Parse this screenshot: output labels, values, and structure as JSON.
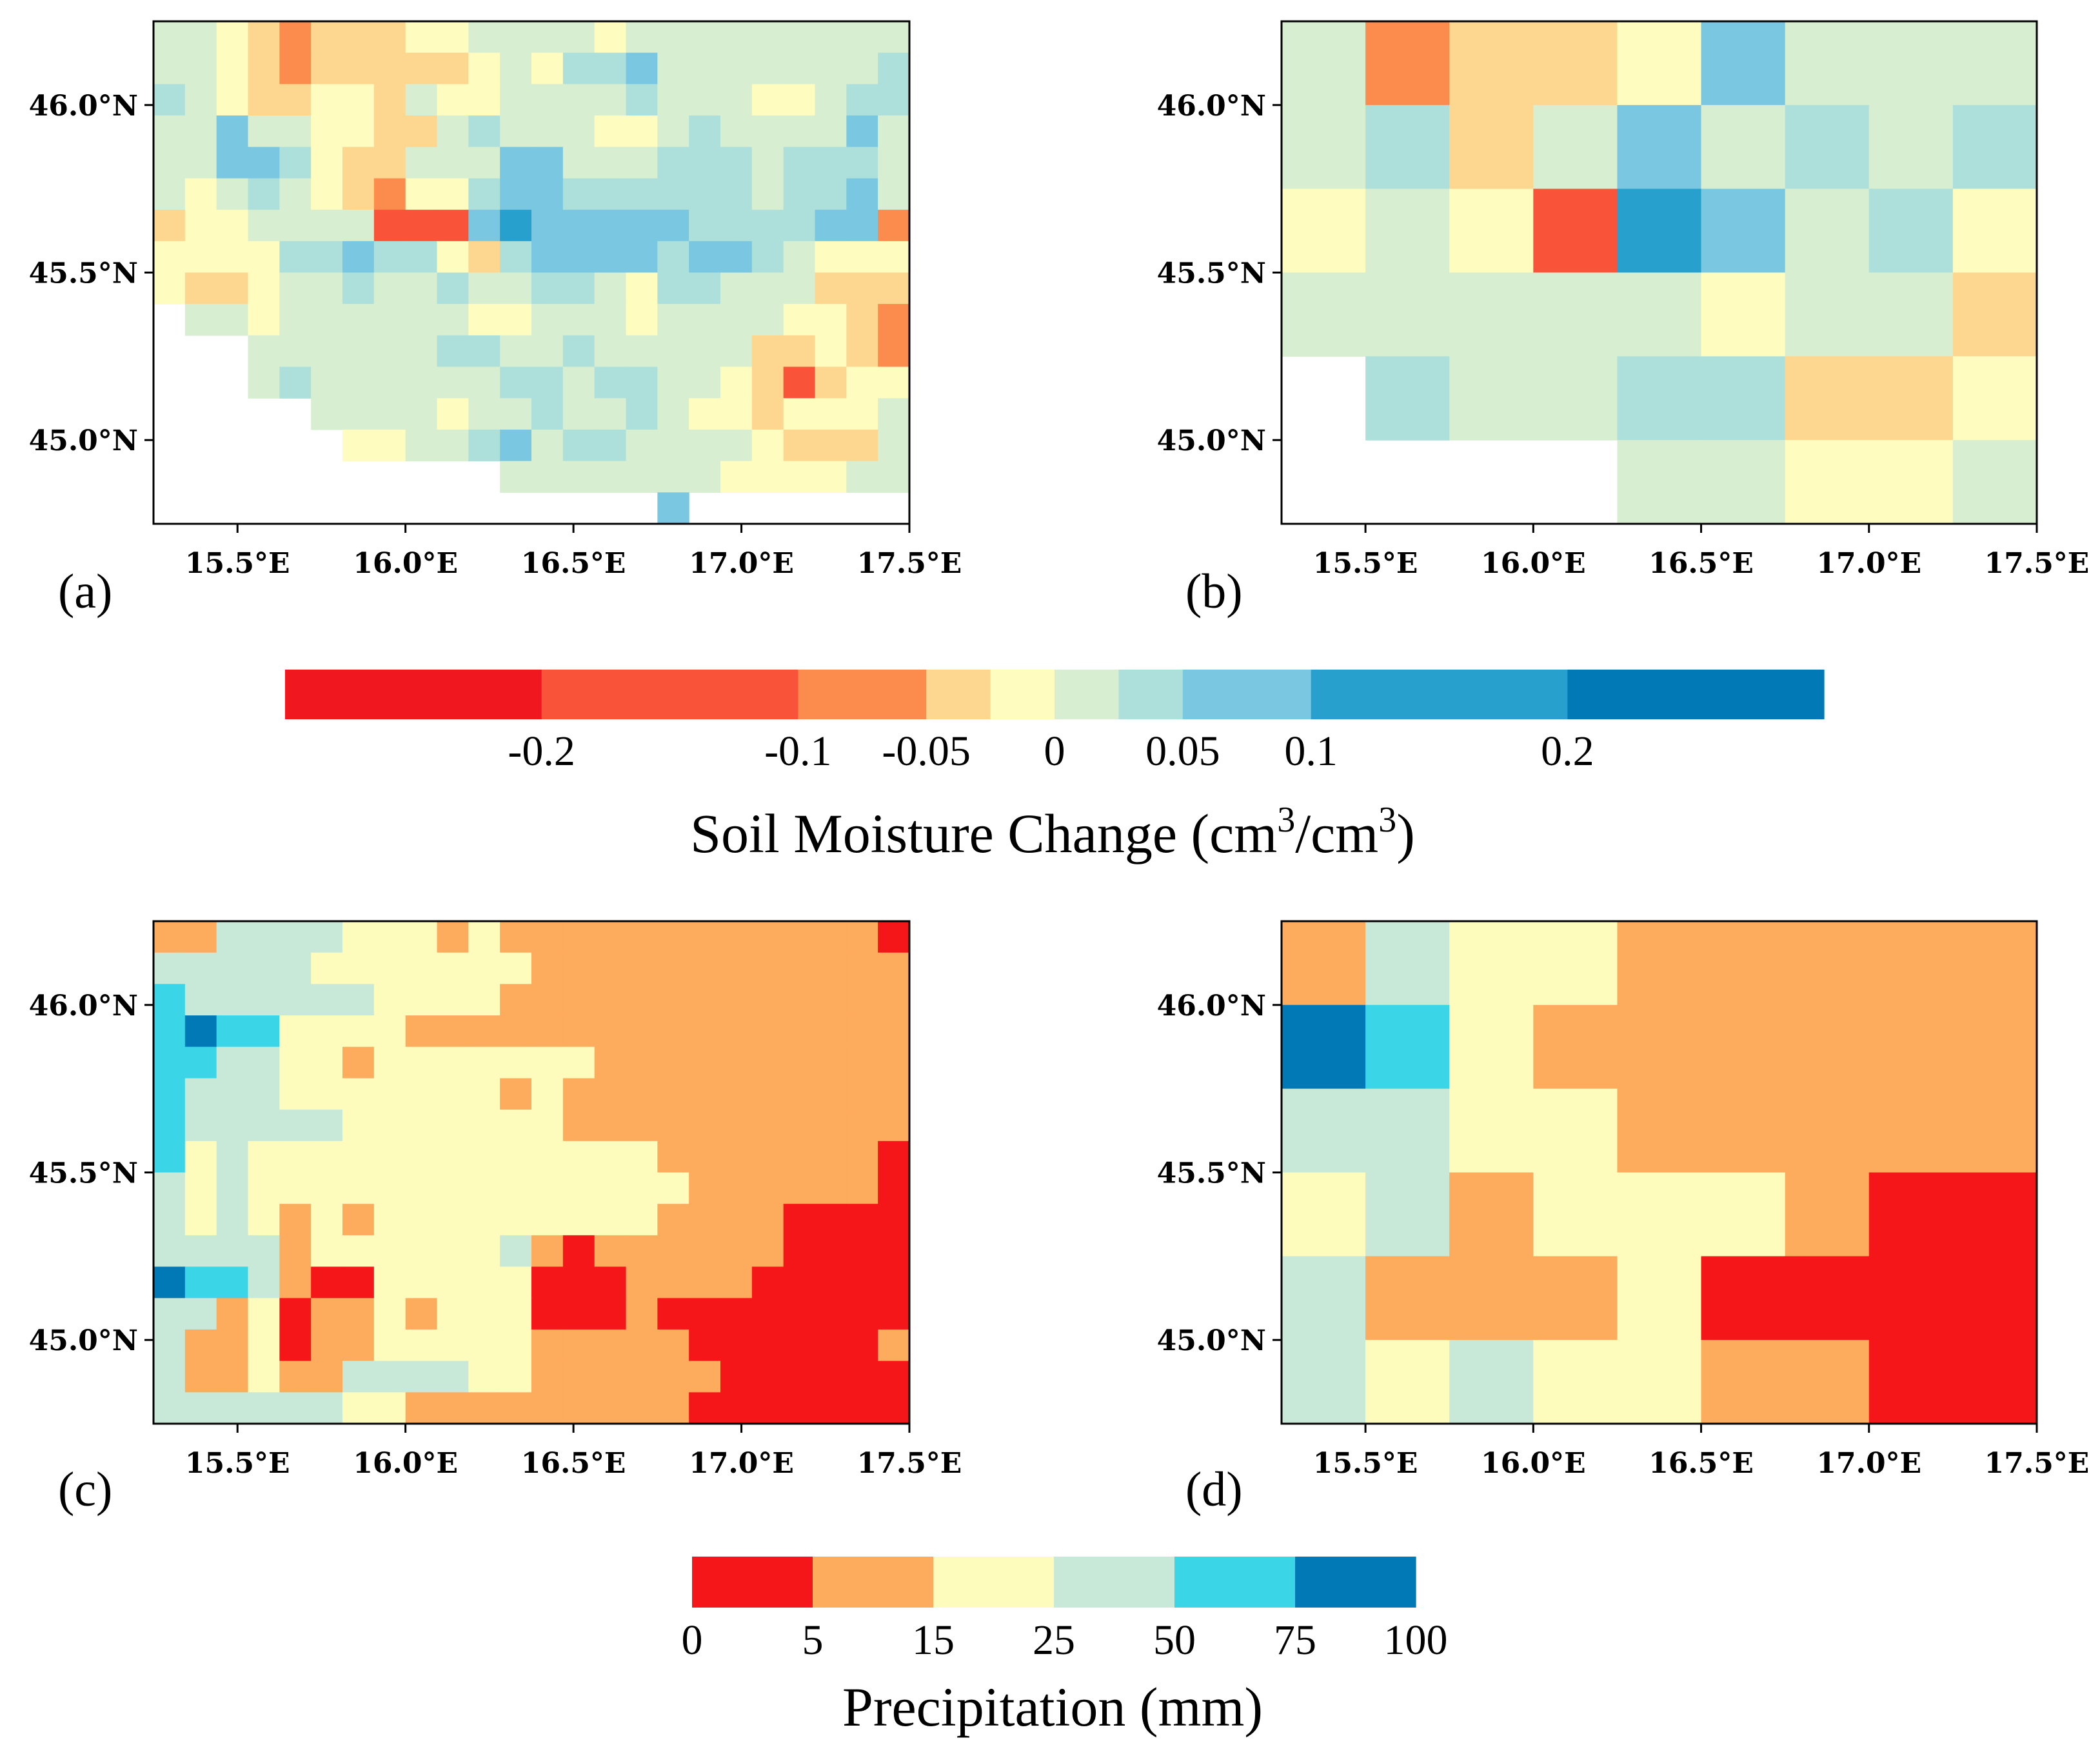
{
  "chart_data": [
    {
      "panel": "(a)",
      "type": "heatmap",
      "variable": "soil_moisture_change",
      "xlim": [
        15.25,
        17.5
      ],
      "ylim": [
        44.75,
        46.25
      ],
      "xticks": [
        "15.5°E",
        "16.0°E",
        "16.5°E",
        "17.0°E",
        "17.5°E"
      ],
      "yticks": [
        "45.0°N",
        "45.5°N",
        "46.0°N"
      ],
      "cell_deg": 0.09375,
      "grid_legend": "class index per cell (-1 = no data); classes follow the soil moisture colorbar from driest (0) to wettest (9)",
      "grid": [
        [
          5,
          5,
          4,
          3,
          2,
          3,
          3,
          3,
          4,
          4,
          5,
          5,
          5,
          5,
          4,
          5,
          5,
          5,
          5,
          5,
          5,
          5,
          5,
          5
        ],
        [
          5,
          5,
          4,
          3,
          2,
          3,
          3,
          3,
          3,
          3,
          4,
          5,
          4,
          6,
          6,
          7,
          5,
          5,
          5,
          5,
          5,
          5,
          5,
          6
        ],
        [
          6,
          5,
          4,
          3,
          3,
          4,
          4,
          3,
          5,
          4,
          4,
          5,
          5,
          5,
          5,
          6,
          5,
          5,
          5,
          4,
          4,
          5,
          6,
          6
        ],
        [
          5,
          5,
          7,
          5,
          5,
          4,
          4,
          3,
          3,
          5,
          6,
          5,
          5,
          5,
          4,
          4,
          5,
          6,
          5,
          5,
          5,
          5,
          7,
          5
        ],
        [
          5,
          5,
          7,
          7,
          6,
          4,
          3,
          3,
          5,
          5,
          5,
          7,
          7,
          5,
          5,
          5,
          6,
          6,
          6,
          5,
          6,
          6,
          6,
          5
        ],
        [
          5,
          4,
          5,
          6,
          5,
          4,
          3,
          2,
          4,
          4,
          6,
          7,
          7,
          6,
          6,
          6,
          6,
          6,
          6,
          5,
          6,
          6,
          7,
          5
        ],
        [
          3,
          4,
          4,
          5,
          5,
          5,
          5,
          1,
          1,
          1,
          7,
          8,
          7,
          7,
          7,
          7,
          7,
          6,
          6,
          6,
          6,
          7,
          7,
          2
        ],
        [
          4,
          4,
          4,
          4,
          6,
          6,
          7,
          6,
          6,
          4,
          3,
          6,
          7,
          7,
          7,
          7,
          6,
          7,
          7,
          6,
          5,
          4,
          4,
          4
        ],
        [
          4,
          3,
          3,
          4,
          5,
          5,
          6,
          5,
          5,
          6,
          5,
          5,
          6,
          6,
          5,
          4,
          6,
          6,
          5,
          5,
          5,
          3,
          3,
          3
        ],
        [
          -1,
          5,
          5,
          4,
          5,
          5,
          5,
          5,
          5,
          5,
          4,
          4,
          5,
          5,
          5,
          4,
          5,
          5,
          5,
          5,
          4,
          4,
          3,
          2
        ],
        [
          -1,
          -1,
          -1,
          5,
          5,
          5,
          5,
          5,
          5,
          6,
          6,
          5,
          5,
          6,
          5,
          5,
          5,
          5,
          5,
          3,
          3,
          4,
          3,
          2
        ],
        [
          -1,
          -1,
          -1,
          5,
          6,
          5,
          5,
          5,
          5,
          5,
          5,
          6,
          6,
          5,
          6,
          6,
          5,
          5,
          4,
          3,
          1,
          3,
          4,
          4
        ],
        [
          -1,
          -1,
          -1,
          -1,
          -1,
          5,
          5,
          5,
          5,
          4,
          5,
          5,
          6,
          5,
          5,
          6,
          5,
          4,
          4,
          3,
          4,
          4,
          4,
          5
        ],
        [
          -1,
          -1,
          -1,
          -1,
          -1,
          -1,
          4,
          4,
          5,
          5,
          6,
          7,
          5,
          6,
          6,
          5,
          5,
          5,
          5,
          4,
          3,
          3,
          3,
          5
        ],
        [
          -1,
          -1,
          -1,
          -1,
          -1,
          -1,
          -1,
          -1,
          -1,
          -1,
          -1,
          5,
          5,
          5,
          5,
          5,
          5,
          5,
          4,
          4,
          4,
          4,
          5,
          5
        ],
        [
          -1,
          -1,
          -1,
          -1,
          -1,
          -1,
          -1,
          -1,
          -1,
          -1,
          -1,
          -1,
          -1,
          -1,
          -1,
          -1,
          7,
          -1,
          -1,
          -1,
          -1,
          -1,
          -1,
          -1
        ]
      ]
    },
    {
      "panel": "(b)",
      "type": "heatmap",
      "variable": "soil_moisture_change",
      "xlim": [
        15.25,
        17.5
      ],
      "ylim": [
        44.75,
        46.25
      ],
      "xticks": [
        "15.5°E",
        "16.0°E",
        "16.5°E",
        "17.0°E",
        "17.5°E"
      ],
      "yticks": [
        "45.0°N",
        "45.5°N",
        "46.0°N"
      ],
      "cell_deg": 0.25,
      "grid_legend": "class index per cell (-1 = no data); classes follow the soil moisture colorbar from driest (0) to wettest (9)",
      "grid": [
        [
          5,
          2,
          3,
          3,
          4,
          7,
          5,
          5,
          5
        ],
        [
          5,
          6,
          3,
          5,
          7,
          5,
          6,
          5,
          6
        ],
        [
          4,
          5,
          4,
          1,
          8,
          7,
          5,
          6,
          4
        ],
        [
          5,
          5,
          5,
          5,
          5,
          4,
          5,
          5,
          3
        ],
        [
          -1,
          6,
          5,
          5,
          6,
          6,
          3,
          3,
          4
        ],
        [
          -1,
          -1,
          -1,
          -1,
          5,
          5,
          4,
          4,
          5
        ]
      ]
    },
    {
      "panel": "(c)",
      "type": "heatmap",
      "variable": "precipitation",
      "xlim": [
        15.25,
        17.5
      ],
      "ylim": [
        44.75,
        46.25
      ],
      "xticks": [
        "15.5°E",
        "16.0°E",
        "16.5°E",
        "17.0°E",
        "17.5°E"
      ],
      "yticks": [
        "45.0°N",
        "45.5°N",
        "46.0°N"
      ],
      "cell_deg": 0.09375,
      "grid_legend": "class index per cell; classes follow the precipitation colorbar: 0-5, 5-15, 15-25, 25-50, 50-75, 75-100 mm",
      "grid": [
        [
          1,
          1,
          3,
          3,
          3,
          3,
          2,
          2,
          2,
          1,
          2,
          1,
          1,
          1,
          1,
          1,
          1,
          1,
          1,
          1,
          1,
          1,
          1,
          0
        ],
        [
          3,
          3,
          3,
          3,
          3,
          2,
          2,
          2,
          2,
          2,
          2,
          2,
          1,
          1,
          1,
          1,
          1,
          1,
          1,
          1,
          1,
          1,
          1,
          1
        ],
        [
          4,
          3,
          3,
          3,
          3,
          3,
          3,
          2,
          2,
          2,
          2,
          1,
          1,
          1,
          1,
          1,
          1,
          1,
          1,
          1,
          1,
          1,
          1,
          1
        ],
        [
          4,
          5,
          4,
          4,
          2,
          2,
          2,
          2,
          1,
          1,
          1,
          1,
          1,
          1,
          1,
          1,
          1,
          1,
          1,
          1,
          1,
          1,
          1,
          1
        ],
        [
          4,
          4,
          3,
          3,
          2,
          2,
          1,
          2,
          2,
          2,
          2,
          2,
          2,
          2,
          1,
          1,
          1,
          1,
          1,
          1,
          1,
          1,
          1,
          1
        ],
        [
          4,
          3,
          3,
          3,
          2,
          2,
          2,
          2,
          2,
          2,
          2,
          1,
          2,
          1,
          1,
          1,
          1,
          1,
          1,
          1,
          1,
          1,
          1,
          1
        ],
        [
          4,
          3,
          3,
          3,
          3,
          3,
          2,
          2,
          2,
          2,
          2,
          2,
          2,
          1,
          1,
          1,
          1,
          1,
          1,
          1,
          1,
          1,
          1,
          1
        ],
        [
          4,
          2,
          3,
          2,
          2,
          2,
          2,
          2,
          2,
          2,
          2,
          2,
          2,
          2,
          2,
          2,
          1,
          1,
          1,
          1,
          1,
          1,
          1,
          0
        ],
        [
          3,
          2,
          3,
          2,
          2,
          2,
          2,
          2,
          2,
          2,
          2,
          2,
          2,
          2,
          2,
          2,
          2,
          1,
          1,
          1,
          1,
          1,
          1,
          0
        ],
        [
          3,
          2,
          3,
          2,
          1,
          2,
          1,
          2,
          2,
          2,
          2,
          2,
          2,
          2,
          2,
          2,
          1,
          1,
          1,
          1,
          0,
          0,
          0,
          0
        ],
        [
          3,
          3,
          3,
          3,
          1,
          2,
          2,
          2,
          2,
          2,
          2,
          3,
          1,
          0,
          1,
          1,
          1,
          1,
          1,
          1,
          0,
          0,
          0,
          0
        ],
        [
          5,
          4,
          4,
          3,
          1,
          0,
          0,
          2,
          2,
          2,
          2,
          2,
          0,
          0,
          0,
          1,
          1,
          1,
          1,
          0,
          0,
          0,
          0,
          0
        ],
        [
          3,
          3,
          1,
          2,
          0,
          1,
          1,
          2,
          1,
          2,
          2,
          2,
          0,
          0,
          0,
          1,
          0,
          0,
          0,
          0,
          0,
          0,
          0,
          0
        ],
        [
          3,
          1,
          1,
          2,
          0,
          1,
          1,
          2,
          2,
          2,
          2,
          2,
          1,
          1,
          1,
          1,
          1,
          0,
          0,
          0,
          0,
          0,
          0,
          1
        ],
        [
          3,
          1,
          1,
          2,
          1,
          1,
          3,
          3,
          3,
          3,
          2,
          2,
          1,
          1,
          1,
          1,
          1,
          1,
          0,
          0,
          0,
          0,
          0,
          0
        ],
        [
          3,
          3,
          3,
          3,
          3,
          3,
          2,
          2,
          1,
          1,
          1,
          1,
          1,
          1,
          1,
          1,
          1,
          0,
          0,
          0,
          0,
          0,
          0,
          0
        ]
      ]
    },
    {
      "panel": "(d)",
      "type": "heatmap",
      "variable": "precipitation",
      "xlim": [
        15.25,
        17.5
      ],
      "ylim": [
        44.75,
        46.25
      ],
      "xticks": [
        "15.5°E",
        "16.0°E",
        "16.5°E",
        "17.0°E",
        "17.5°E"
      ],
      "yticks": [
        "45.0°N",
        "45.5°N",
        "46.0°N"
      ],
      "cell_deg": 0.25,
      "grid_legend": "class index per cell; classes follow the precipitation colorbar: 0-5, 5-15, 15-25, 25-50, 50-75, 75-100 mm",
      "grid": [
        [
          1,
          3,
          2,
          2,
          1,
          1,
          1,
          1,
          1
        ],
        [
          5,
          4,
          2,
          1,
          1,
          1,
          1,
          1,
          1
        ],
        [
          3,
          3,
          2,
          2,
          1,
          1,
          1,
          1,
          1
        ],
        [
          2,
          3,
          1,
          2,
          2,
          2,
          1,
          0,
          0
        ],
        [
          3,
          1,
          1,
          1,
          2,
          0,
          0,
          0,
          0
        ],
        [
          3,
          2,
          3,
          2,
          2,
          1,
          1,
          0,
          0
        ]
      ]
    },
    {
      "type": "colorbar",
      "title": "Soil Moisture Change (cm³/cm³)",
      "title_main": "Soil Moisture Change (cm",
      "title_sup": "3",
      "title_mid": "/cm",
      "title_end": ")",
      "boundaries": [
        -0.3,
        -0.2,
        -0.1,
        -0.05,
        -0.025,
        0,
        0.025,
        0.05,
        0.1,
        0.2,
        0.3
      ],
      "tick_values": [
        -0.2,
        -0.1,
        -0.05,
        0,
        0.05,
        0.1,
        0.2
      ],
      "tick_labels": [
        "-0.2",
        "-0.1",
        "-0.05",
        "0",
        "0.05",
        "0.1",
        "0.2"
      ],
      "colors": [
        "#f0171e",
        "#f9533a",
        "#fc8c4e",
        "#fdd690",
        "#fefcbf",
        "#d8eed1",
        "#aee0db",
        "#7ac7e1",
        "#28a0cd",
        "#0279b7"
      ]
    },
    {
      "type": "colorbar",
      "title": "Precipitation (mm)",
      "boundaries": [
        0,
        5,
        15,
        25,
        50,
        75,
        100
      ],
      "tick_labels": [
        "0",
        "5",
        "15",
        "25",
        "50",
        "75",
        "100"
      ],
      "colors": [
        "#f51619",
        "#fdab5d",
        "#fefcbd",
        "#c8e8d8",
        "#3ad6e8",
        "#0279b7"
      ]
    }
  ],
  "panel_labels": [
    "(a)",
    "(b)",
    "(c)",
    "(d)"
  ]
}
